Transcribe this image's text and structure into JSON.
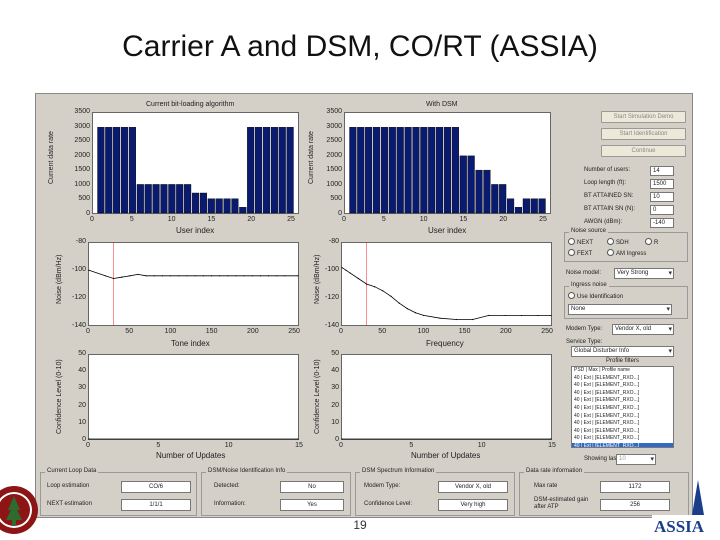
{
  "slide": {
    "title": "Carrier A and DSM, CO/RT (ASSIA)",
    "page_number": "19"
  },
  "plots": {
    "p1": {
      "title": "Current bit-loading algorithm",
      "ylabel": "Current data rate",
      "xlabel": "User index",
      "yticks": [
        "3500",
        "3000",
        "2500",
        "2000",
        "1500",
        "1000",
        "500",
        "0"
      ],
      "xticks": [
        "0",
        "5",
        "10",
        "15",
        "20",
        "25"
      ]
    },
    "p2": {
      "title": "With DSM",
      "ylabel": "Current data rate",
      "xlabel": "User index",
      "yticks": [
        "3500",
        "3000",
        "2500",
        "2000",
        "1500",
        "1000",
        "500",
        "0"
      ],
      "xticks": [
        "0",
        "5",
        "10",
        "15",
        "20",
        "25"
      ]
    },
    "p3": {
      "ylabel": "Noise (dBm/Hz)",
      "xlabel": "Tone index",
      "yticks": [
        "-80",
        "-100",
        "-120",
        "-140"
      ],
      "xticks": [
        "0",
        "50",
        "100",
        "150",
        "200",
        "250"
      ]
    },
    "p4": {
      "ylabel": "Noise (dBm/Hz)",
      "xlabel": "Frequency",
      "yticks": [
        "-80",
        "-100",
        "-120",
        "-140"
      ],
      "xticks": [
        "0",
        "50",
        "100",
        "150",
        "200",
        "250"
      ]
    },
    "p5": {
      "ylabel": "Confidence Level (0-10)",
      "xlabel": "Number of Updates",
      "yticks": [
        "50",
        "40",
        "30",
        "20",
        "10",
        "0"
      ],
      "xticks": [
        "0",
        "5",
        "10",
        "15"
      ]
    },
    "p6": {
      "ylabel": "Confidence Level (0-10)",
      "xlabel": "Number of Updates",
      "yticks": [
        "50",
        "40",
        "30",
        "20",
        "10",
        "0"
      ],
      "xticks": [
        "0",
        "5",
        "10",
        "15"
      ]
    }
  },
  "chart_data": [
    {
      "type": "bar",
      "title": "Current bit-loading algorithm",
      "xlabel": "User index",
      "ylabel": "Current data rate",
      "ylim": [
        0,
        3500
      ],
      "xlim": [
        0,
        26
      ],
      "x": [
        1,
        2,
        3,
        4,
        5,
        6,
        7,
        8,
        9,
        10,
        11,
        12,
        13,
        14,
        15,
        16,
        17,
        18,
        19,
        20,
        21,
        22,
        23,
        24,
        25
      ],
      "values": [
        3000,
        3000,
        3000,
        3000,
        3000,
        1000,
        1000,
        1000,
        1000,
        1000,
        1000,
        1000,
        700,
        700,
        500,
        500,
        500,
        500,
        200,
        3000,
        3000,
        3000,
        3000,
        3000,
        3000
      ]
    },
    {
      "type": "bar",
      "title": "With DSM",
      "xlabel": "User index",
      "ylabel": "Current data rate",
      "ylim": [
        0,
        3500
      ],
      "xlim": [
        0,
        26
      ],
      "x": [
        1,
        2,
        3,
        4,
        5,
        6,
        7,
        8,
        9,
        10,
        11,
        12,
        13,
        14,
        15,
        16,
        17,
        18,
        19,
        20,
        21,
        22,
        23,
        24,
        25
      ],
      "values": [
        3000,
        3000,
        3000,
        3000,
        3000,
        3000,
        3000,
        3000,
        3000,
        3000,
        3000,
        3000,
        3000,
        3000,
        2000,
        2000,
        1500,
        1500,
        1000,
        1000,
        500,
        200,
        500,
        500,
        500
      ]
    },
    {
      "type": "line",
      "xlabel": "Tone index",
      "ylabel": "Noise (dBm/Hz)",
      "xlim": [
        0,
        256
      ],
      "ylim": [
        -140,
        -80
      ],
      "x": [
        0,
        20,
        30,
        40,
        50,
        60,
        70,
        80,
        90,
        100,
        110,
        120,
        130,
        140,
        150,
        160,
        170,
        180,
        190,
        200,
        210,
        220,
        230,
        240,
        256
      ],
      "y": [
        -100,
        -104,
        -106,
        -105,
        -104,
        -103,
        -104,
        -104,
        -104,
        -104,
        -104,
        -104,
        -104,
        -104,
        -104,
        -104,
        -104,
        -104,
        -104,
        -104,
        -104,
        -104,
        -104,
        -104,
        -104
      ]
    },
    {
      "type": "line",
      "xlabel": "Frequency",
      "ylabel": "Noise (dBm/Hz)",
      "xlim": [
        0,
        256
      ],
      "ylim": [
        -140,
        -80
      ],
      "x": [
        0,
        5,
        10,
        20,
        30,
        40,
        50,
        60,
        70,
        80,
        90,
        100,
        120,
        140,
        160,
        180,
        200,
        220,
        240,
        256
      ],
      "y": [
        -98,
        -100,
        -102,
        -106,
        -110,
        -112,
        -115,
        -119,
        -124,
        -128,
        -131,
        -133,
        -135,
        -136,
        -136,
        -133,
        -133,
        -133,
        -133,
        -133
      ]
    },
    {
      "type": "line",
      "xlabel": "Number of Updates",
      "ylabel": "Confidence Level (0-10)",
      "xlim": [
        0,
        15
      ],
      "ylim": [
        0,
        50
      ],
      "x": [
        0,
        15
      ],
      "y": [
        0,
        0
      ]
    },
    {
      "type": "line",
      "xlabel": "Number of Updates",
      "ylabel": "Confidence Level (0-10)",
      "xlim": [
        0,
        15
      ],
      "ylim": [
        0,
        50
      ],
      "x": [
        0,
        15
      ],
      "y": [
        0,
        0
      ]
    }
  ],
  "controls": {
    "btn1": "Start Simulation Demo",
    "btn2": "Start Identification",
    "btn3": "Continue",
    "fields": [
      {
        "label": "Number of users:",
        "value": "14"
      },
      {
        "label": "Loop length (ft):",
        "value": "1500"
      },
      {
        "label": "BT ATTAINED SN:",
        "value": "10"
      },
      {
        "label": "BT ATTAIN SN (N):",
        "value": "0"
      },
      {
        "label": "AWGN (dBm):",
        "value": "-140"
      }
    ],
    "noise_group_title": "Noise source",
    "noise_radios": [
      "NEXT",
      "SDH",
      "R",
      "FEXT",
      "AM Ingress"
    ],
    "noise_model_label": "Noise model:",
    "noise_model_value": "Very Strong",
    "ingress_group_title": "Ingress noise",
    "ingress_checkbox": "Use Identification",
    "ingress_select": "None",
    "modem_type_label": "Modem Type:",
    "modem_type_value": "Vendor X, old",
    "service_type_label": "Service Type:",
    "service_type_value": "Global Disturber Info",
    "profile_list_title": "Profile filters",
    "profile_list": [
      "PSD | Max | Profile name",
      "40 | Ext | [ELEMENT_RXO...]",
      "40 | Ext | [ELEMENT_RXO...]",
      "40 | Ext | [ELEMENT_RXO...]",
      "40 | Ext | [ELEMENT_RXO...]",
      "40 | Ext | [ELEMENT_RXO...]",
      "40 | Ext | [ELEMENT_RXO...]",
      "40 | Ext | [ELEMENT_RXO...]",
      "40 | Ext | [ELEMENT_RXO...]",
      "40 | Ext | [ELEMENT_RXO...]",
      "40 | Ext | [ELEMENT_RXO...]"
    ],
    "showing_last_label": "Showing last:",
    "showing_last_value": "10"
  },
  "bottom": {
    "g1_title": "Current Loop Data",
    "g1_rows": [
      {
        "label": "Loop estimation",
        "value": "CO/6"
      },
      {
        "label": "NEXT estimation",
        "value": "1/1/1"
      }
    ],
    "g2_title": "DSM/Noise Identification Info",
    "g2_rows": [
      {
        "label": "Detected:",
        "value": "No"
      },
      {
        "label": "Information:",
        "value": "Yes"
      }
    ],
    "g3_title": "DSM Spectrum Information",
    "g3_rows": [
      {
        "label": "Modem Type:",
        "value": "Vendor X, old"
      },
      {
        "label": "Confidence Level:",
        "value": "Very high"
      }
    ],
    "g4_title": "Data rate information",
    "g4_rows": [
      {
        "label": "Max rate",
        "value": "1172"
      },
      {
        "label": "DSM-estimated gain after ATP",
        "value": "256"
      }
    ]
  },
  "colors": {
    "bar": "#0a1a6e",
    "line": "#000000",
    "marker": "#ff8c8c",
    "window": "#d4d0c8",
    "stanford": "#8c1515",
    "assia": "#1a3e8c"
  },
  "logos": {
    "left": "Stanford seal",
    "right": "ASSIA"
  }
}
